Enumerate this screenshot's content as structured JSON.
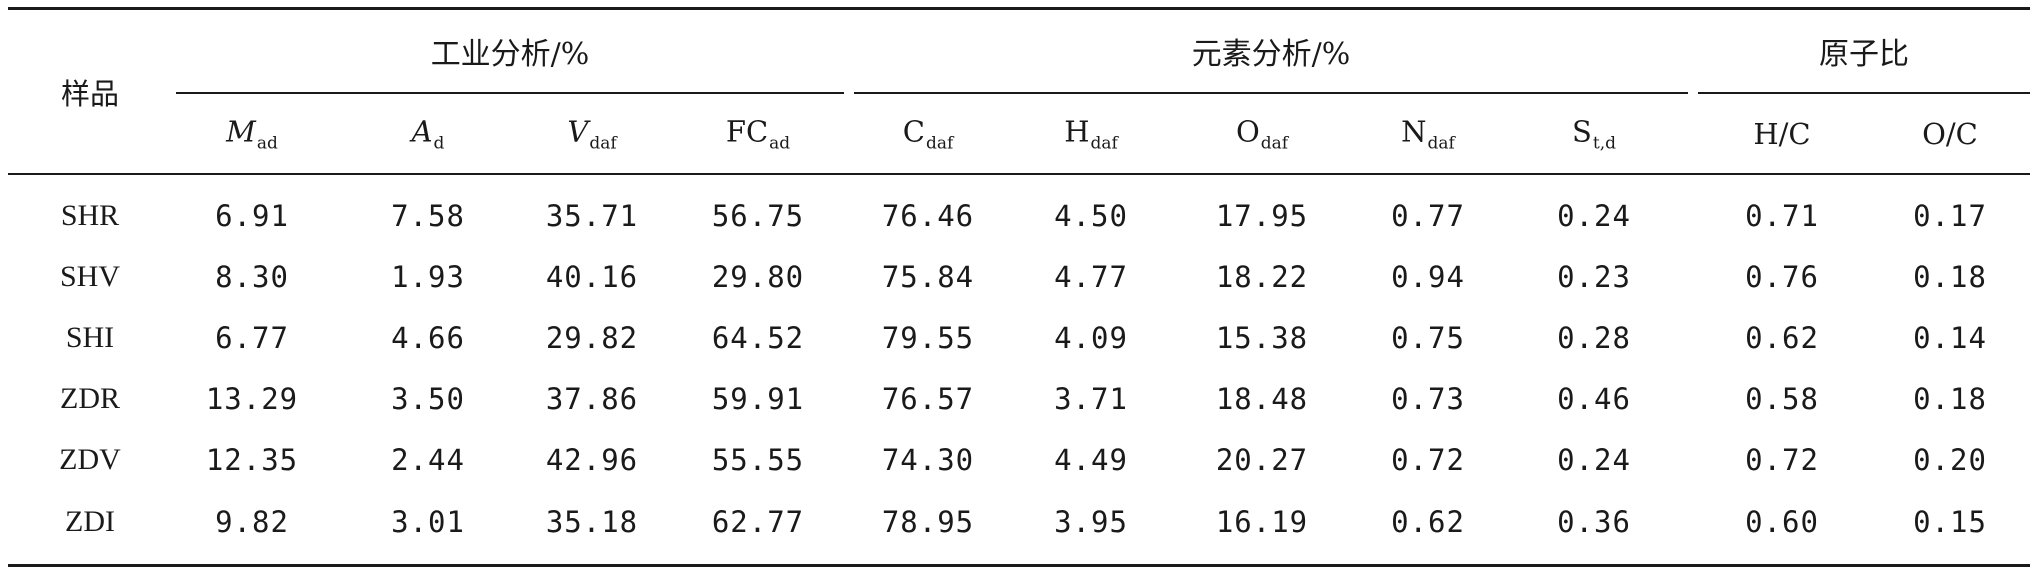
{
  "table": {
    "sample_header": "样品",
    "groups": [
      {
        "label": "工业分析/%"
      },
      {
        "label": "元素分析/%"
      },
      {
        "label": "原子比"
      }
    ],
    "columns": [
      {
        "base": "M",
        "sub": "ad",
        "italic": true
      },
      {
        "base": "A",
        "sub": "d",
        "italic": true
      },
      {
        "base": "V",
        "sub": "daf",
        "italic": true
      },
      {
        "base": "FC",
        "sub": "ad",
        "italic": false
      },
      {
        "base": "C",
        "sub": "daf",
        "italic": false
      },
      {
        "base": "H",
        "sub": "daf",
        "italic": false
      },
      {
        "base": "O",
        "sub": "daf",
        "italic": false
      },
      {
        "base": "N",
        "sub": "daf",
        "italic": false
      },
      {
        "base": "S",
        "sub": "t,d",
        "italic": false
      },
      {
        "base": "H/C",
        "sub": "",
        "italic": false
      },
      {
        "base": "O/C",
        "sub": "",
        "italic": false
      }
    ],
    "rows": [
      {
        "sample": "SHR",
        "values": [
          "6.91",
          "7.58",
          "35.71",
          "56.75",
          "76.46",
          "4.50",
          "17.95",
          "0.77",
          "0.24",
          "0.71",
          "0.17"
        ]
      },
      {
        "sample": "SHV",
        "values": [
          "8.30",
          "1.93",
          "40.16",
          "29.80",
          "75.84",
          "4.77",
          "18.22",
          "0.94",
          "0.23",
          "0.76",
          "0.18"
        ]
      },
      {
        "sample": "SHI",
        "values": [
          "6.77",
          "4.66",
          "29.82",
          "64.52",
          "79.55",
          "4.09",
          "15.38",
          "0.75",
          "0.28",
          "0.62",
          "0.14"
        ]
      },
      {
        "sample": "ZDR",
        "values": [
          "13.29",
          "3.50",
          "37.86",
          "59.91",
          "76.57",
          "3.71",
          "18.48",
          "0.73",
          "0.46",
          "0.58",
          "0.18"
        ]
      },
      {
        "sample": "ZDV",
        "values": [
          "12.35",
          "2.44",
          "42.96",
          "55.55",
          "74.30",
          "4.49",
          "20.27",
          "0.72",
          "0.24",
          "0.72",
          "0.20"
        ]
      },
      {
        "sample": "ZDI",
        "values": [
          "9.82",
          "3.01",
          "35.18",
          "62.77",
          "78.95",
          "3.95",
          "16.19",
          "0.62",
          "0.36",
          "0.60",
          "0.15"
        ]
      }
    ]
  }
}
